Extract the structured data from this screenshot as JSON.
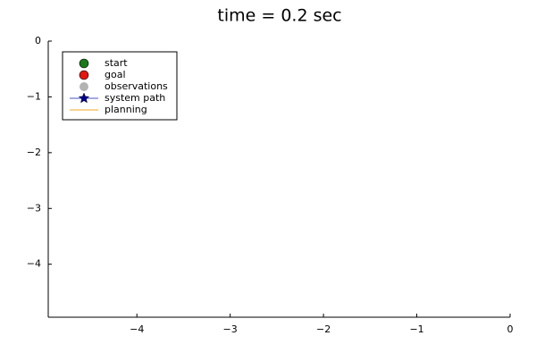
{
  "chart_data": {
    "type": "scatter",
    "title": "time = 0.2 sec",
    "xlabel": "",
    "ylabel": "",
    "xlim": [
      -4.95,
      0
    ],
    "ylim": [
      -4.95,
      0
    ],
    "xticks": [
      -4,
      -3,
      -2,
      -1,
      0
    ],
    "yticks": [
      0,
      -1,
      -2,
      -3,
      -4
    ],
    "xtick_labels": [
      "−4",
      "−3",
      "−2",
      "−1",
      "0"
    ],
    "ytick_labels": [
      "0",
      "−1",
      "−2",
      "−3",
      "−4"
    ],
    "grid": false,
    "legend_position": "top-left",
    "series": [
      {
        "name": "start",
        "kind": "marker",
        "marker": "circle",
        "color": "#1a7a1a",
        "x": [],
        "y": []
      },
      {
        "name": "goal",
        "kind": "marker",
        "marker": "circle",
        "color": "#e3170d",
        "x": [],
        "y": []
      },
      {
        "name": "observations",
        "kind": "marker",
        "marker": "circle",
        "color": "#b3b3b3",
        "x": [],
        "y": []
      },
      {
        "name": "system path",
        "kind": "line-marker",
        "marker": "star",
        "color": "#00008b",
        "line_color": "#4a55c7",
        "x": [],
        "y": []
      },
      {
        "name": "planning",
        "kind": "line",
        "color": "#f5a623",
        "x": [],
        "y": []
      }
    ]
  }
}
